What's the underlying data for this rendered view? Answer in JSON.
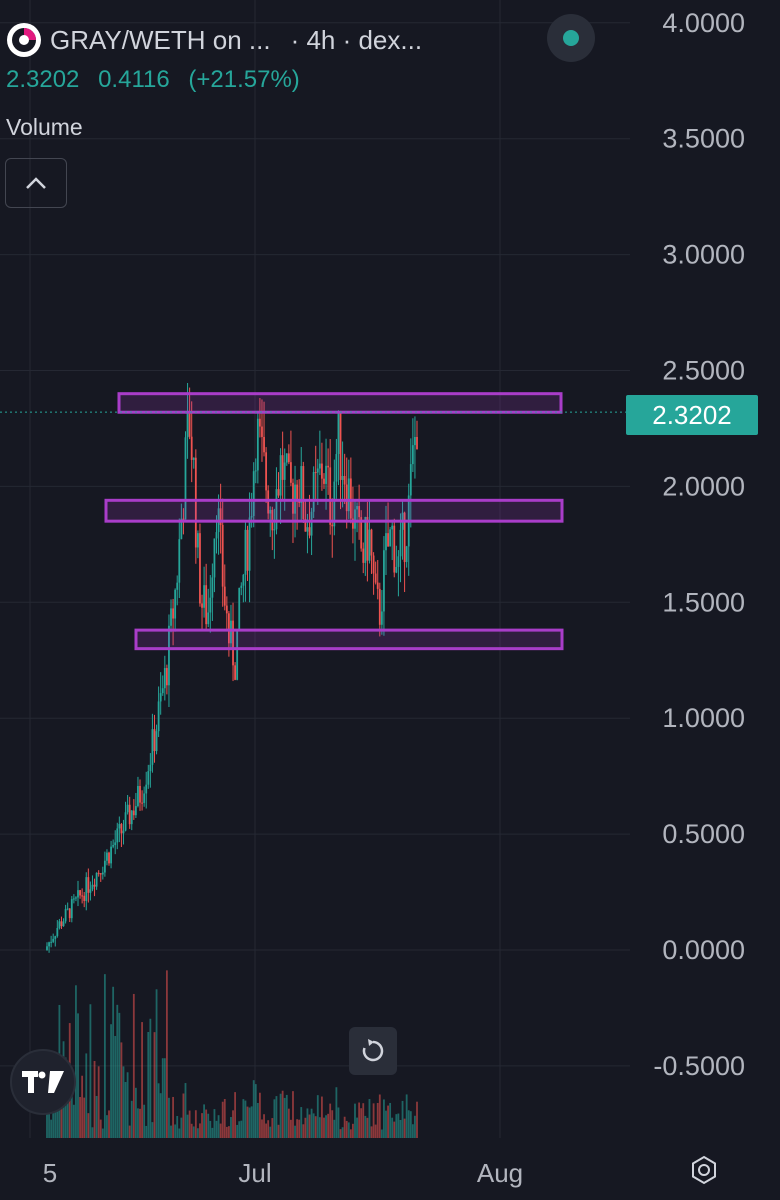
{
  "header": {
    "symbol_title": "GRAY/WETH on ...",
    "interval_source": "· 4h · dex...",
    "last": "2.3202",
    "change": "0.4116",
    "change_pct": "(+21.57%)",
    "volume_label": "Volume"
  },
  "colors": {
    "background": "#161822",
    "up": "#26a69a",
    "down": "#ef5350",
    "zone": "#a93dc9",
    "text": "#d1d4dc",
    "axis_text": "#b2b5be"
  },
  "icons": {
    "logo": "dex-logo-icon",
    "status": "status-dot-icon",
    "collapse": "chevron-up-icon",
    "tradingview": "tradingview-logo-icon",
    "reset": "reset-icon",
    "settings": "settings-icon"
  },
  "chart_data": {
    "type": "candlestick",
    "price_axis_labels": [
      "4.0000",
      "3.5000",
      "3.0000",
      "2.5000",
      "2.0000",
      "1.5000",
      "1.0000",
      "0.5000",
      "0.0000",
      "-0.5000"
    ],
    "price_axis_values": [
      4.0,
      3.5,
      3.0,
      2.5,
      2.0,
      1.5,
      1.0,
      0.5,
      0.0,
      -0.5
    ],
    "time_axis_labels": [
      "5",
      "Jul",
      "Aug"
    ],
    "ylim": [
      -0.8,
      4.1
    ],
    "last_price_label": "2.3202",
    "last_price_value": 2.3202,
    "zones": [
      {
        "from": 2.32,
        "to": 2.4
      },
      {
        "from": 1.85,
        "to": 1.94
      },
      {
        "from": 1.3,
        "to": 1.38
      }
    ],
    "price_path": [
      [
        0.02,
        0.0
      ],
      [
        0.05,
        0.1
      ],
      [
        0.1,
        0.22
      ],
      [
        0.15,
        0.35
      ],
      [
        0.2,
        0.5
      ],
      [
        0.25,
        0.68
      ],
      [
        0.28,
        0.9
      ],
      [
        0.31,
        1.2
      ],
      [
        0.335,
        1.6
      ],
      [
        0.35,
        1.95
      ],
      [
        0.365,
        2.3
      ],
      [
        0.375,
        2.1
      ],
      [
        0.385,
        1.7
      ],
      [
        0.395,
        1.5
      ],
      [
        0.41,
        1.45
      ],
      [
        0.42,
        1.7
      ],
      [
        0.43,
        1.95
      ],
      [
        0.445,
        1.6
      ],
      [
        0.46,
        1.35
      ],
      [
        0.475,
        1.25
      ],
      [
        0.49,
        1.55
      ],
      [
        0.51,
        1.85
      ],
      [
        0.525,
        2.25
      ],
      [
        0.545,
        2.05
      ],
      [
        0.565,
        1.9
      ],
      [
        0.585,
        2.1
      ],
      [
        0.605,
        1.95
      ],
      [
        0.625,
        2.05
      ],
      [
        0.645,
        1.85
      ],
      [
        0.665,
        1.95
      ],
      [
        0.685,
        2.1
      ],
      [
        0.705,
        1.9
      ],
      [
        0.72,
        2.2
      ],
      [
        0.74,
        2.05
      ],
      [
        0.76,
        1.85
      ],
      [
        0.78,
        1.7
      ],
      [
        0.795,
        1.8
      ],
      [
        0.81,
        1.5
      ],
      [
        0.82,
        1.45
      ],
      [
        0.835,
        1.7
      ],
      [
        0.85,
        1.8
      ],
      [
        0.865,
        1.65
      ],
      [
        0.875,
        1.75
      ],
      [
        0.89,
        1.9
      ],
      [
        0.9,
        2.1
      ],
      [
        0.91,
        2.3
      ]
    ]
  }
}
